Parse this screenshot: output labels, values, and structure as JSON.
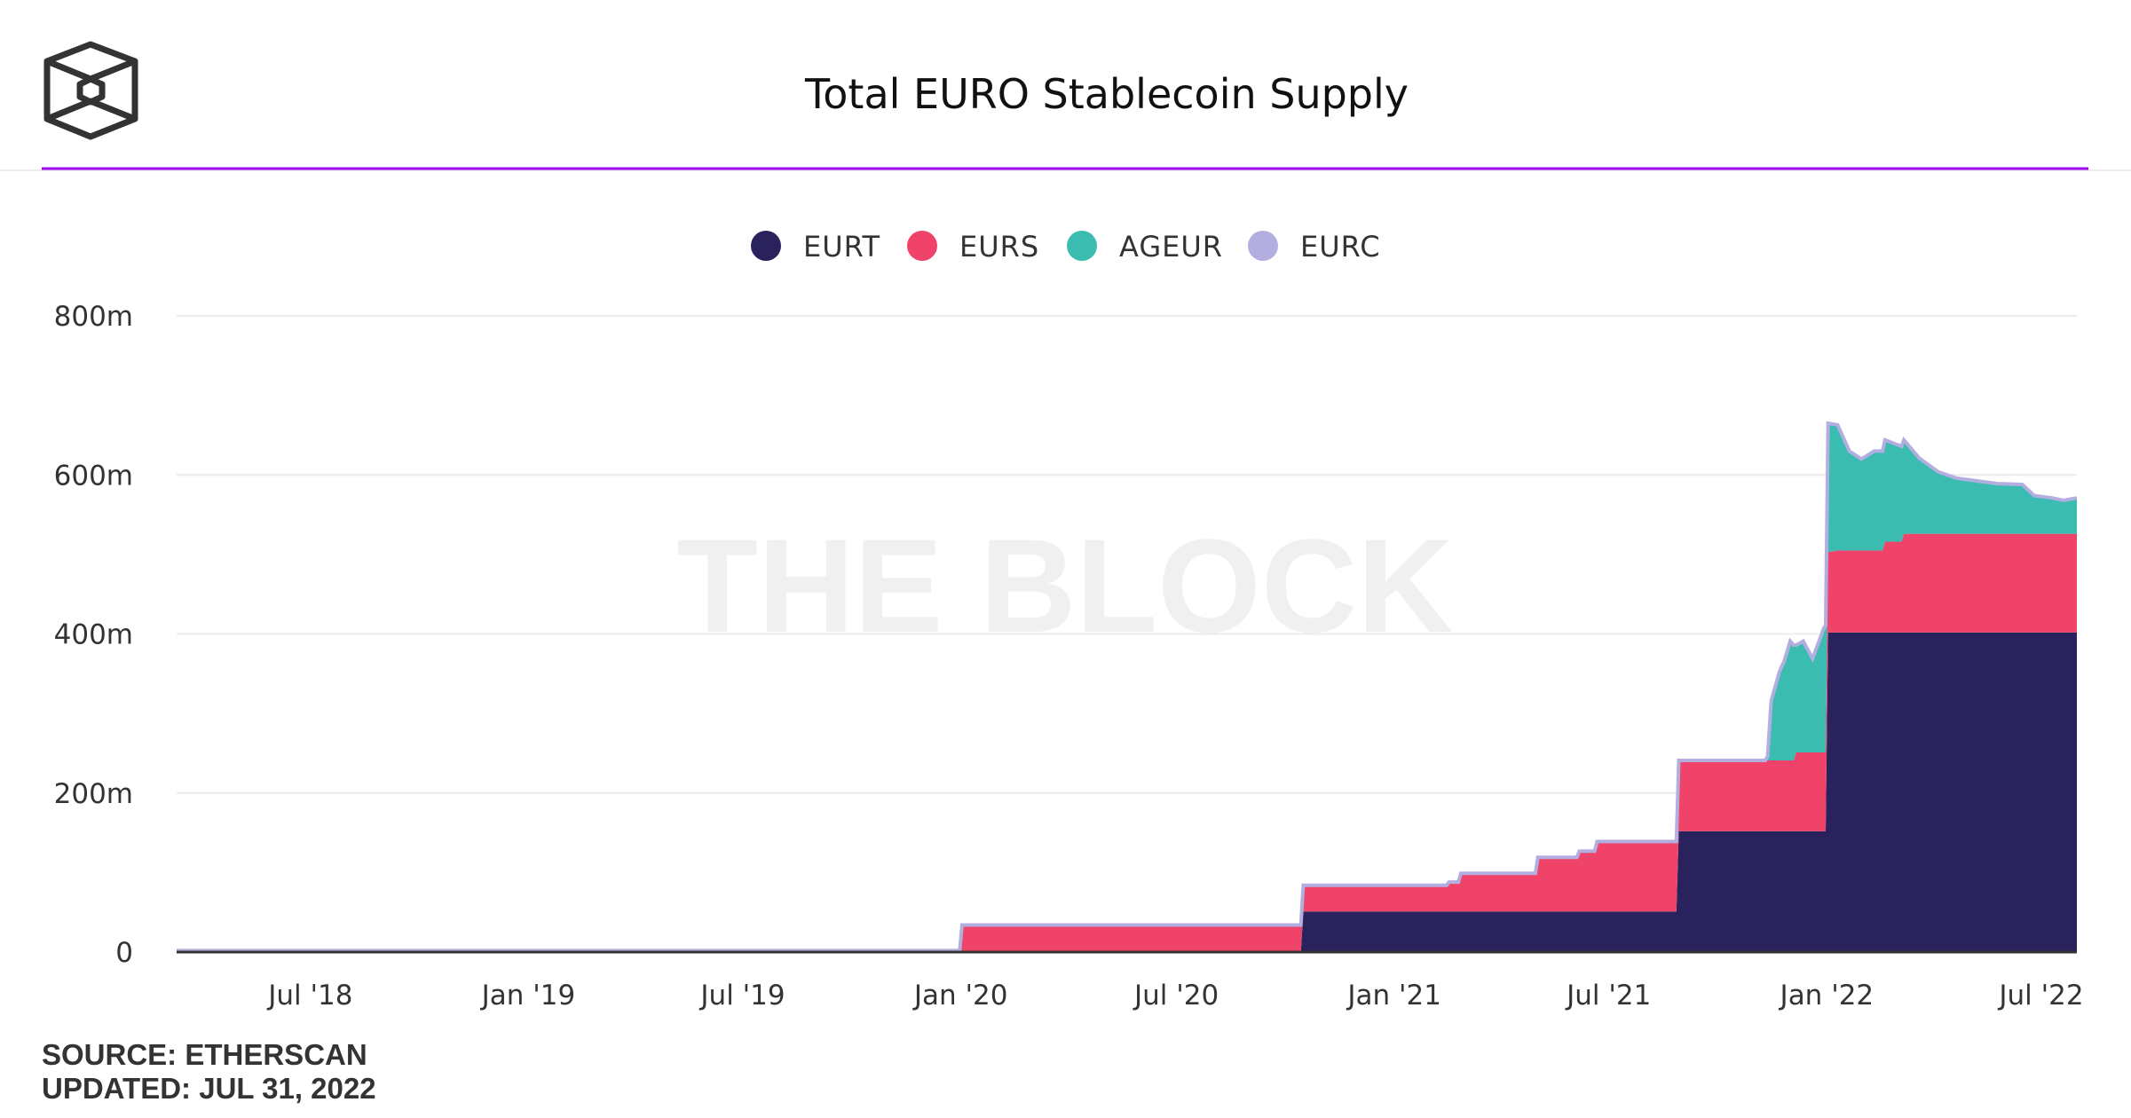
{
  "chart_data": {
    "type": "area",
    "stacked": true,
    "title": "Total EURO Stablecoin Supply",
    "xlabel": "",
    "ylabel": "",
    "ylim": [
      0,
      800
    ],
    "xlim": [
      "2018-03-10",
      "2022-07-31"
    ],
    "yticks": [
      {
        "value": 0,
        "label": "0"
      },
      {
        "value": 200,
        "label": "200m"
      },
      {
        "value": 400,
        "label": "400m"
      },
      {
        "value": 600,
        "label": "600m"
      },
      {
        "value": 800,
        "label": "800m"
      }
    ],
    "xticks": [
      {
        "date": "2018-07-01",
        "label": "Jul '18"
      },
      {
        "date": "2019-01-01",
        "label": "Jan '19"
      },
      {
        "date": "2019-07-01",
        "label": "Jul '19"
      },
      {
        "date": "2020-01-01",
        "label": "Jan '20"
      },
      {
        "date": "2020-07-01",
        "label": "Jul '20"
      },
      {
        "date": "2021-01-01",
        "label": "Jan '21"
      },
      {
        "date": "2021-07-01",
        "label": "Jul '21"
      },
      {
        "date": "2022-01-01",
        "label": "Jan '22"
      },
      {
        "date": "2022-07-01",
        "label": "Jul '22"
      }
    ],
    "grid": true,
    "legend_position": "top",
    "x": [
      "2018-03-10",
      "2019-12-31",
      "2020-01-02",
      "2020-10-14",
      "2020-10-16",
      "2021-02-14",
      "2021-02-16",
      "2021-02-24",
      "2021-02-26",
      "2021-04-30",
      "2021-05-02",
      "2021-06-04",
      "2021-06-06",
      "2021-06-19",
      "2021-06-21",
      "2021-08-27",
      "2021-08-29",
      "2021-11-10",
      "2021-11-12",
      "2021-11-15",
      "2021-11-22",
      "2021-11-26",
      "2021-12-01",
      "2021-12-04",
      "2021-12-06",
      "2021-12-12",
      "2021-12-20",
      "2021-12-29",
      "2021-12-31",
      "2022-01-02",
      "2022-01-10",
      "2022-01-20",
      "2022-01-30",
      "2022-02-10",
      "2022-02-17",
      "2022-02-19",
      "2022-03-05",
      "2022-03-07",
      "2022-03-20",
      "2022-04-05",
      "2022-04-20",
      "2022-05-10",
      "2022-05-25",
      "2022-06-15",
      "2022-06-25",
      "2022-07-10",
      "2022-07-20",
      "2022-07-31"
    ],
    "series": [
      {
        "name": "EURT",
        "color": "#2a225c",
        "values": [
          0,
          0,
          0,
          0,
          51,
          51,
          51,
          51,
          51,
          51,
          51,
          51,
          51,
          51,
          51,
          51,
          152,
          152,
          152,
          152,
          152,
          152,
          152,
          152,
          152,
          152,
          152,
          152,
          152,
          402,
          402,
          402,
          402,
          402,
          402,
          402,
          402,
          402,
          402,
          402,
          402,
          402,
          402,
          402,
          402,
          402,
          402,
          402
        ]
      },
      {
        "name": "EURS",
        "color": "#ef4369",
        "values": [
          2,
          2,
          34,
          34,
          33,
          33,
          37,
          37,
          48,
          48,
          68,
          68,
          76,
          76,
          88,
          88,
          89,
          89,
          89,
          89,
          89,
          89,
          89,
          89,
          99,
          99,
          99,
          99,
          99,
          101,
          103,
          103,
          103,
          103,
          103,
          114,
          114,
          124,
          124,
          124,
          124,
          124,
          124,
          124,
          124,
          124,
          124,
          124
        ]
      },
      {
        "name": "AGEUR",
        "color": "#3bbcb1",
        "values": [
          0,
          0,
          0,
          0,
          0,
          0,
          0,
          0,
          0,
          0,
          0,
          0,
          0,
          0,
          0,
          0,
          0,
          0,
          5,
          75,
          112,
          125,
          150,
          145,
          135,
          140,
          118,
          155,
          160,
          162,
          158,
          125,
          115,
          125,
          125,
          128,
          120,
          118,
          95,
          78,
          70,
          66,
          63,
          62,
          48,
          45,
          42,
          45
        ]
      },
      {
        "name": "EURC",
        "color": "#b3aee0",
        "values": [
          0,
          0,
          0,
          0,
          0,
          0,
          0,
          0,
          0,
          0,
          0,
          0,
          0,
          0,
          0,
          0,
          0,
          0,
          0,
          0,
          0,
          0,
          0,
          0,
          0,
          0,
          0,
          0,
          0,
          0,
          0,
          0,
          0,
          0,
          0,
          0,
          0,
          0,
          0,
          0,
          0,
          0,
          0,
          0,
          0,
          0,
          0,
          0
        ]
      }
    ]
  },
  "header": {
    "title": "Total EURO Stablecoin Supply",
    "accent_color": "#a000f0",
    "logo": "the-block-cube-logo"
  },
  "watermark": "THE BLOCK",
  "footer": {
    "source": "SOURCE: ETHERSCAN",
    "updated": "UPDATED: JUL 31, 2022"
  }
}
